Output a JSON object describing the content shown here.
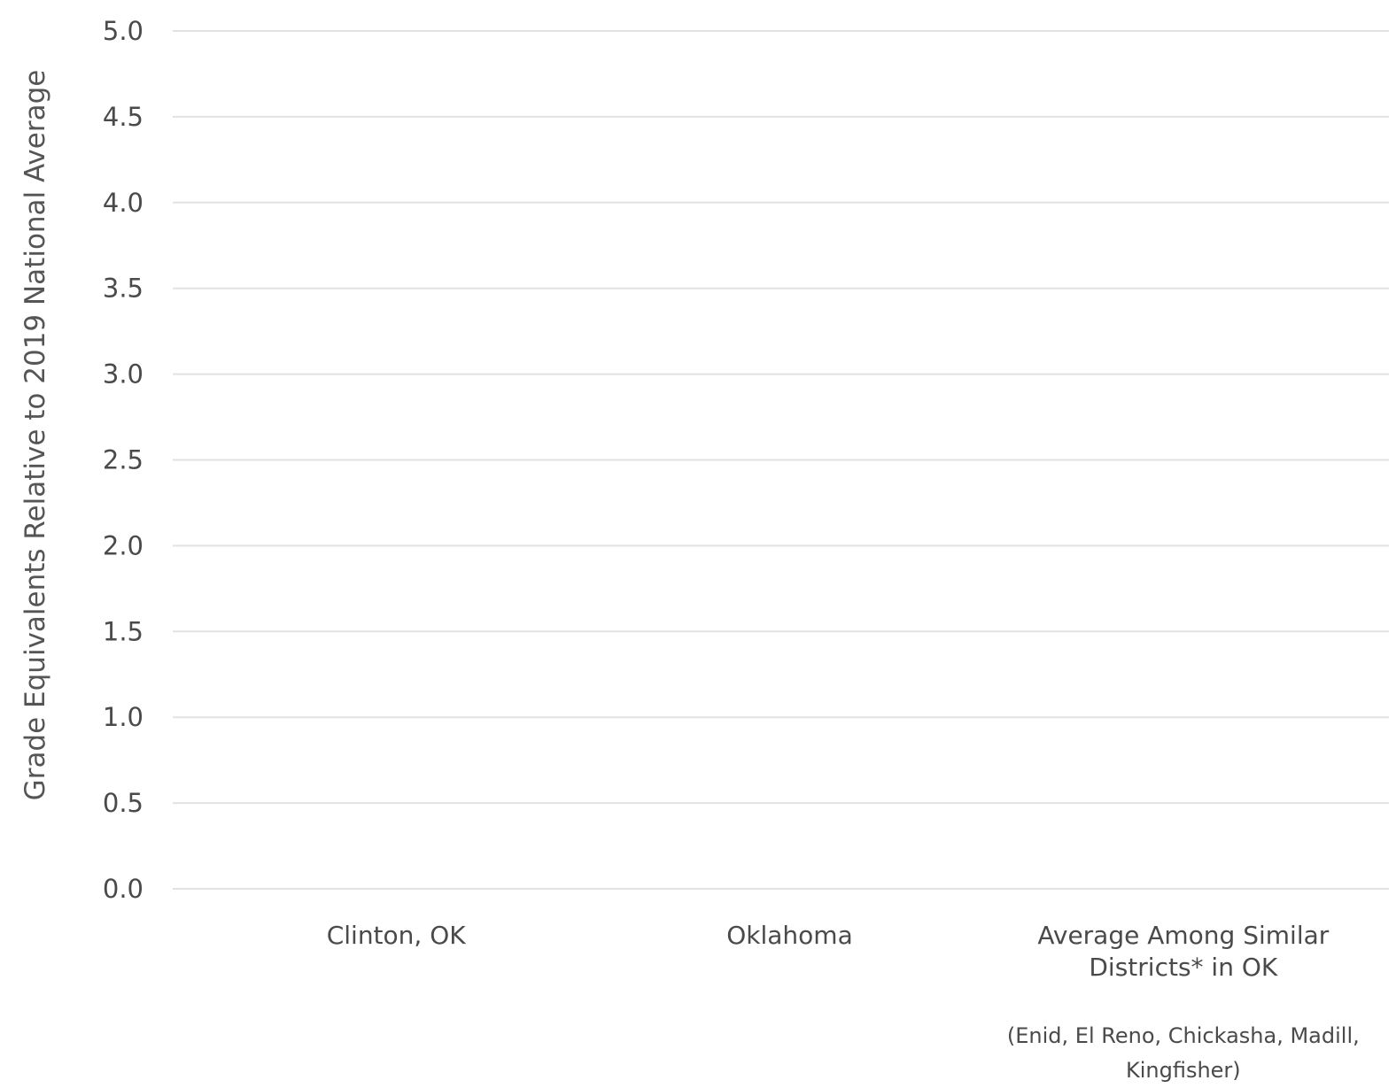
{
  "chart_data": {
    "type": "bar",
    "title": "",
    "xlabel": "",
    "ylabel": "Grade Equivalents Relative to 2019 National Average",
    "ylim": [
      0,
      5
    ],
    "yticks": [
      "0.0",
      "0.5",
      "1.0",
      "1.5",
      "2.0",
      "2.5",
      "3.0",
      "3.5",
      "4.0",
      "4.5",
      "5.0"
    ],
    "grid": true,
    "categories": [
      {
        "label_lines": [
          "Clinton, OK"
        ],
        "note_lines": []
      },
      {
        "label_lines": [
          "Oklahoma"
        ],
        "note_lines": []
      },
      {
        "label_lines": [
          "Average Among Similar",
          "Districts* in OK"
        ],
        "note_lines": [
          "(Enid, El Reno, Chickasha, Madill,",
          "Kingfisher)"
        ]
      }
    ],
    "series": [],
    "colors": {
      "gridline": "#e2e2e2",
      "text": "#4a4a4a"
    }
  }
}
